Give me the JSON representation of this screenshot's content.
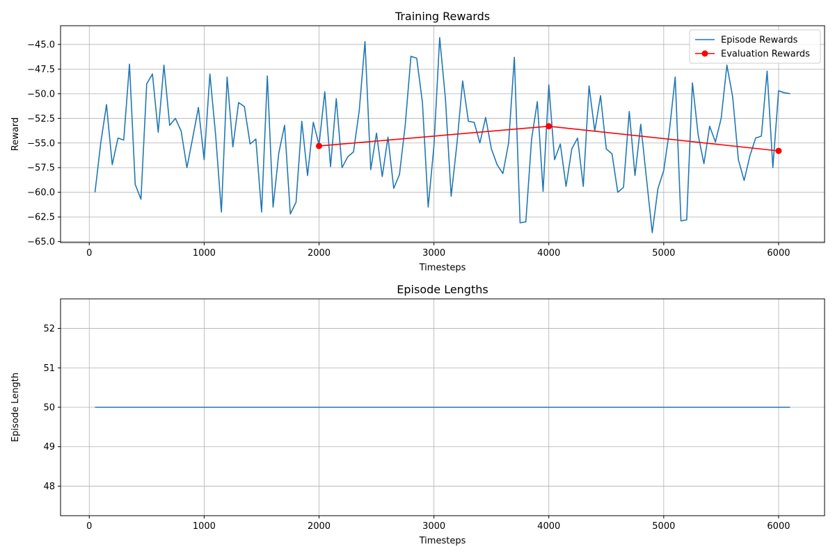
{
  "chart_data": [
    {
      "type": "line",
      "title": "Training Rewards",
      "xlabel": "Timesteps",
      "ylabel": "Reward",
      "xlim": [
        -250,
        6400
      ],
      "ylim": [
        -65.1,
        -43.1
      ],
      "xticks": [
        0,
        1000,
        2000,
        3000,
        4000,
        5000,
        6000
      ],
      "yticks": [
        -65.0,
        -62.5,
        -60.0,
        -57.5,
        -55.0,
        -52.5,
        -50.0,
        -47.5,
        -45.0
      ],
      "ytick_labels": [
        "−65.0",
        "−62.5",
        "−60.0",
        "−57.5",
        "−55.0",
        "−52.5",
        "−50.0",
        "−47.5",
        "−45.0"
      ],
      "grid": true,
      "legend_position": "top-right",
      "series": [
        {
          "name": "Episode Rewards",
          "color": "#1f77b4",
          "marker": "none",
          "x": [
            50,
            100,
            150,
            200,
            250,
            300,
            350,
            400,
            450,
            500,
            550,
            600,
            650,
            700,
            750,
            800,
            850,
            900,
            950,
            1000,
            1050,
            1100,
            1150,
            1200,
            1250,
            1300,
            1350,
            1400,
            1450,
            1500,
            1550,
            1600,
            1650,
            1700,
            1750,
            1800,
            1850,
            1900,
            1950,
            2000,
            2050,
            2100,
            2150,
            2200,
            2250,
            2300,
            2350,
            2400,
            2450,
            2500,
            2550,
            2600,
            2650,
            2700,
            2750,
            2800,
            2850,
            2900,
            2950,
            3000,
            3050,
            3100,
            3150,
            3200,
            3250,
            3300,
            3350,
            3400,
            3450,
            3500,
            3550,
            3600,
            3650,
            3700,
            3750,
            3800,
            3850,
            3900,
            3950,
            4000,
            4050,
            4100,
            4150,
            4200,
            4250,
            4300,
            4350,
            4400,
            4450,
            4500,
            4550,
            4600,
            4650,
            4700,
            4750,
            4800,
            4850,
            4900,
            4950,
            5000,
            5050,
            5100,
            5150,
            5200,
            5250,
            5300,
            5350,
            5400,
            5450,
            5500,
            5550,
            5600,
            5650,
            5700,
            5750,
            5800,
            5850,
            5900,
            5950,
            6000,
            6050,
            6100
          ],
          "y": [
            -60.0,
            -55.0,
            -51.1,
            -57.2,
            -54.5,
            -54.7,
            -47.0,
            -59.2,
            -60.7,
            -49.0,
            -48.0,
            -53.9,
            -47.1,
            -53.2,
            -52.5,
            -53.8,
            -57.5,
            -54.5,
            -51.4,
            -56.7,
            -48.0,
            -54.2,
            -62.0,
            -48.3,
            -55.4,
            -50.9,
            -51.3,
            -55.1,
            -54.6,
            -62.0,
            -48.2,
            -61.5,
            -56.0,
            -53.2,
            -62.2,
            -61.0,
            -52.8,
            -58.3,
            -52.9,
            -55.2,
            -49.8,
            -57.4,
            -50.5,
            -57.5,
            -56.4,
            -55.9,
            -51.7,
            -44.7,
            -57.7,
            -54.0,
            -58.4,
            -54.4,
            -59.6,
            -58.2,
            -53.2,
            -46.2,
            -46.4,
            -50.9,
            -61.5,
            -55.3,
            -44.3,
            -50.5,
            -60.4,
            -55.1,
            -48.7,
            -52.8,
            -52.9,
            -55.0,
            -52.4,
            -55.6,
            -57.2,
            -58.1,
            -55.0,
            -46.3,
            -63.1,
            -63.0,
            -54.6,
            -50.8,
            -59.9,
            -49.1,
            -56.7,
            -55.1,
            -59.4,
            -55.6,
            -54.5,
            -59.4,
            -49.2,
            -53.8,
            -50.2,
            -55.6,
            -56.1,
            -60.0,
            -59.5,
            -51.8,
            -58.3,
            -53.1,
            -58.6,
            -64.1,
            -59.6,
            -57.8,
            -53.7,
            -48.3,
            -62.9,
            -62.8,
            -48.9,
            -54.2,
            -57.1,
            -53.3,
            -54.9,
            -52.5,
            -47.1,
            -50.3,
            -56.7,
            -58.8,
            -56.3,
            -54.5,
            -54.3,
            -47.7,
            -57.5,
            -49.7,
            -49.9,
            -50.0
          ]
        },
        {
          "name": "Evaluation Rewards",
          "color": "#ff0000",
          "marker": "circle",
          "x": [
            2000,
            4000,
            6000
          ],
          "y": [
            -55.3,
            -53.3,
            -55.8
          ]
        }
      ]
    },
    {
      "type": "line",
      "title": "Episode Lengths",
      "xlabel": "Timesteps",
      "ylabel": "Episode Length",
      "xlim": [
        -250,
        6400
      ],
      "ylim": [
        47.25,
        52.75
      ],
      "xticks": [
        0,
        1000,
        2000,
        3000,
        4000,
        5000,
        6000
      ],
      "yticks": [
        48,
        49,
        50,
        51,
        52
      ],
      "ytick_labels": [
        "48",
        "49",
        "50",
        "51",
        "52"
      ],
      "grid": true,
      "series": [
        {
          "color": "#1f77b4",
          "marker": "none",
          "x": [
            50,
            6100
          ],
          "y": [
            50,
            50
          ]
        }
      ]
    }
  ]
}
